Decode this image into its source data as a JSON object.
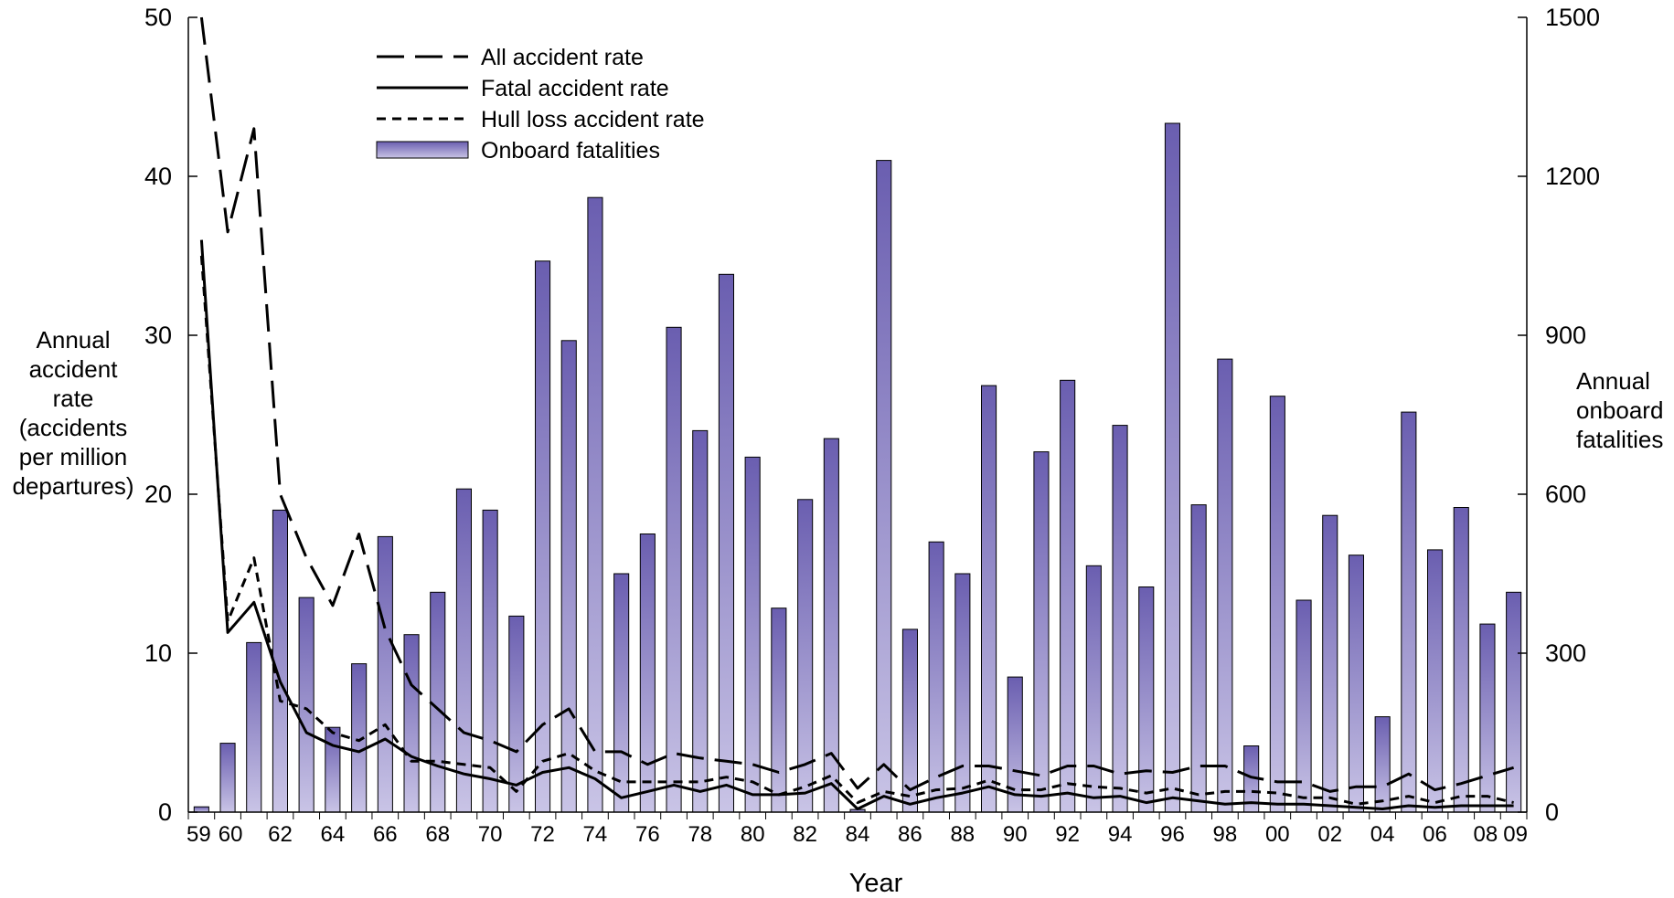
{
  "chart_data": {
    "type": "bar+line",
    "xlabel": "Year",
    "ylabel_left_lines": [
      "Annual",
      "accident",
      "rate",
      "(accidents",
      "per million",
      "departures)"
    ],
    "ylabel_right_lines": [
      "Annual",
      "onboard",
      "fatalities"
    ],
    "ylim_left": [
      0,
      50
    ],
    "ylim_right": [
      0,
      1500
    ],
    "yticks_left": [
      "0",
      "10",
      "20",
      "30",
      "40",
      "50"
    ],
    "yticks_right": [
      "0",
      "300",
      "600",
      "900",
      "1200",
      "1500"
    ],
    "grid": false,
    "legend_position": "top-left",
    "legend": [
      "All accident rate",
      "Fatal accident rate",
      "Hull loss accident rate",
      "Onboard fatalities"
    ],
    "x_tick_labels": [
      "59",
      "60",
      "62",
      "64",
      "66",
      "68",
      "70",
      "72",
      "74",
      "76",
      "78",
      "80",
      "82",
      "84",
      "86",
      "88",
      "90",
      "92",
      "94",
      "96",
      "98",
      "00",
      "02",
      "04",
      "06",
      "08",
      "09"
    ],
    "x_tick_years": [
      1959,
      1960,
      1962,
      1964,
      1966,
      1968,
      1970,
      1972,
      1974,
      1976,
      1978,
      1980,
      1982,
      1984,
      1986,
      1988,
      1990,
      1992,
      1994,
      1996,
      1998,
      2000,
      2002,
      2004,
      2006,
      2008,
      2009
    ],
    "years": [
      1959,
      1960,
      1961,
      1962,
      1963,
      1964,
      1965,
      1966,
      1967,
      1968,
      1969,
      1970,
      1971,
      1972,
      1973,
      1974,
      1975,
      1976,
      1977,
      1978,
      1979,
      1980,
      1981,
      1982,
      1983,
      1984,
      1985,
      1986,
      1987,
      1988,
      1989,
      1990,
      1991,
      1992,
      1993,
      1994,
      1995,
      1996,
      1997,
      1998,
      1999,
      2000,
      2001,
      2002,
      2003,
      2004,
      2005,
      2006,
      2007,
      2008,
      2009
    ],
    "series": [
      {
        "name": "Onboard fatalities",
        "axis": "right",
        "kind": "bar",
        "values": [
          10,
          130,
          320,
          570,
          405,
          160,
          280,
          520,
          335,
          415,
          610,
          570,
          370,
          1040,
          890,
          1160,
          450,
          525,
          915,
          720,
          1015,
          670,
          385,
          590,
          705,
          5,
          1230,
          345,
          510,
          450,
          805,
          255,
          680,
          815,
          465,
          730,
          425,
          1300,
          580,
          855,
          125,
          785,
          400,
          560,
          485,
          180,
          755,
          495,
          575,
          355,
          415
        ]
      },
      {
        "name": "All accident rate",
        "axis": "left",
        "kind": "line",
        "values": [
          50,
          36.5,
          43,
          20,
          16,
          13,
          17.5,
          11.5,
          8,
          6.5,
          5,
          4.5,
          3.8,
          5.5,
          6.5,
          3.8,
          3.8,
          3.0,
          3.7,
          3.4,
          3.2,
          3.0,
          2.5,
          3.0,
          3.7,
          1.5,
          3.0,
          1.4,
          2.2,
          2.9,
          2.9,
          2.6,
          2.3,
          2.9,
          2.9,
          2.4,
          2.6,
          2.5,
          2.9,
          2.9,
          2.2,
          1.9,
          1.9,
          1.3,
          1.6,
          1.6,
          2.4,
          1.4,
          1.8,
          2.3,
          2.8
        ]
      },
      {
        "name": "Fatal accident rate",
        "axis": "left",
        "kind": "line",
        "values": [
          36,
          11.3,
          13.2,
          8.2,
          5.0,
          4.2,
          3.8,
          4.6,
          3.5,
          2.9,
          2.4,
          2.1,
          1.7,
          2.5,
          2.8,
          2.1,
          0.9,
          1.3,
          1.7,
          1.3,
          1.7,
          1.1,
          1.1,
          1.2,
          1.8,
          0.2,
          1.0,
          0.5,
          0.9,
          1.2,
          1.6,
          1.1,
          1.0,
          1.2,
          0.9,
          1.0,
          0.6,
          0.9,
          0.7,
          0.5,
          0.6,
          0.5,
          0.5,
          0.4,
          0.3,
          0.2,
          0.4,
          0.3,
          0.4,
          0.4,
          0.4
        ]
      },
      {
        "name": "Hull loss accident rate",
        "axis": "left",
        "kind": "line",
        "values": [
          35,
          12,
          16,
          7.0,
          6.5,
          5.0,
          4.5,
          5.5,
          3.2,
          3.2,
          3.0,
          2.8,
          1.3,
          3.2,
          3.7,
          2.6,
          1.9,
          1.9,
          1.9,
          1.9,
          2.2,
          1.9,
          1.1,
          1.6,
          2.3,
          0.6,
          1.3,
          1.0,
          1.4,
          1.5,
          2.0,
          1.4,
          1.4,
          1.8,
          1.6,
          1.5,
          1.2,
          1.5,
          1.1,
          1.3,
          1.3,
          1.2,
          0.9,
          0.9,
          0.5,
          0.7,
          1.0,
          0.6,
          1.0,
          1.0,
          0.6
        ]
      }
    ]
  }
}
